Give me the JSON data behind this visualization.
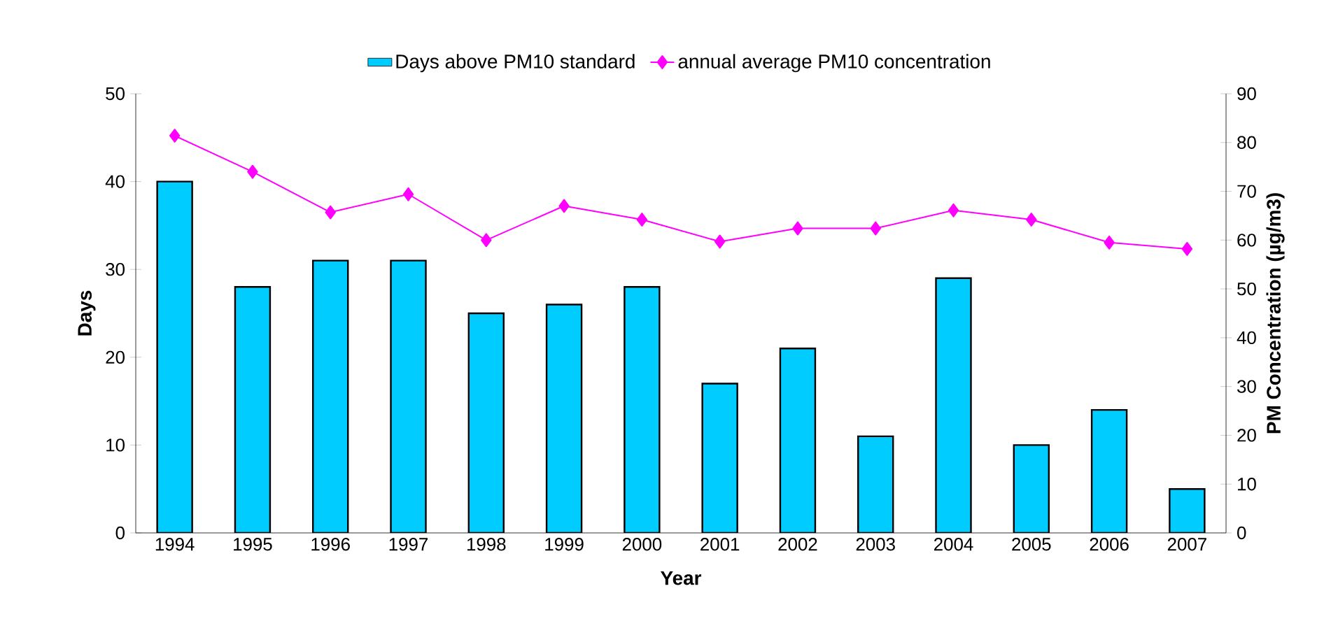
{
  "chart_data": {
    "type": "bar",
    "categories": [
      "1994",
      "1995",
      "1996",
      "1997",
      "1998",
      "1999",
      "2000",
      "2001",
      "2002",
      "2003",
      "2004",
      "2005",
      "2006",
      "2007"
    ],
    "xlabel": "Year",
    "ylabel": "Days",
    "y2label": "PM Concentration (µg/m3)",
    "ylim": [
      0,
      50
    ],
    "yticks": [
      0,
      10,
      20,
      30,
      40,
      50
    ],
    "y2lim": [
      0,
      90
    ],
    "y2ticks": [
      0,
      10,
      20,
      30,
      40,
      50,
      60,
      70,
      80,
      90
    ],
    "legend": "top",
    "grid": false,
    "series": [
      {
        "name": "Days above PM10 standard",
        "color": "#00ccff",
        "values": [
          40,
          28,
          31,
          31,
          25,
          26,
          28,
          17,
          21,
          11,
          29,
          10,
          14,
          5
        ]
      },
      {
        "name": "annual average PM10 concentration",
        "type": "line",
        "axis": "y2",
        "marker": "diamond",
        "color": "#ff00ff",
        "values": [
          81.4,
          74.0,
          65.7,
          69.4,
          60.0,
          67.0,
          64.2,
          59.7,
          62.4,
          62.4,
          66.1,
          64.2,
          59.5,
          58.2
        ]
      }
    ]
  }
}
